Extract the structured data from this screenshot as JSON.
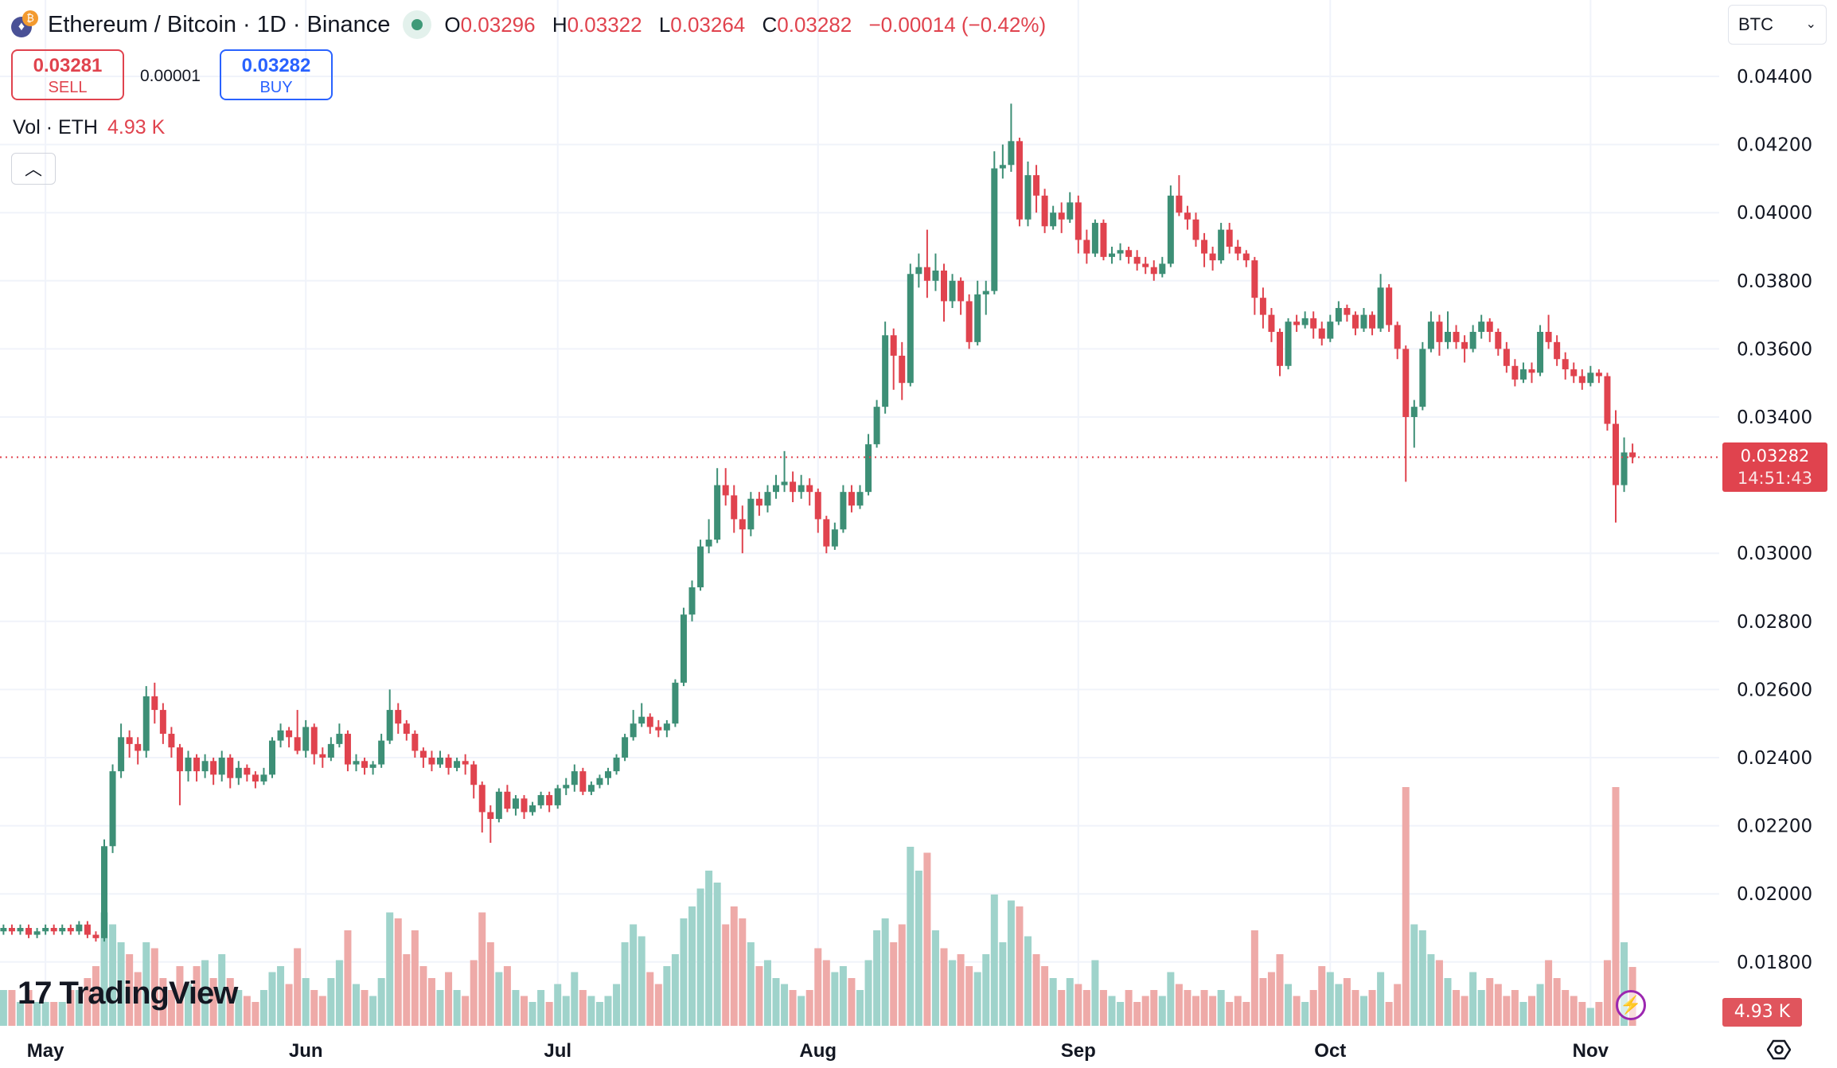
{
  "header": {
    "symbol_title": "Ethereum / Bitcoin · 1D · Binance",
    "ohlc": [
      {
        "key": "O",
        "value": "0.03296"
      },
      {
        "key": "H",
        "value": "0.03322"
      },
      {
        "key": "L",
        "value": "0.03264"
      },
      {
        "key": "C",
        "value": "0.03282"
      }
    ],
    "change": "−0.00014 (−0.42%)"
  },
  "trade": {
    "sell_price": "0.03281",
    "sell_label": "SELL",
    "spread": "0.00001",
    "buy_price": "0.03282",
    "buy_label": "BUY"
  },
  "volume_legend": {
    "label": "Vol · ETH",
    "value": "4.93 K"
  },
  "currency_selector": "BTC",
  "last_price_tag": {
    "price": "0.03282",
    "countdown": "14:51:43"
  },
  "volume_tag": "4.93 K",
  "logo_text": "TradingView",
  "colors": {
    "up": "#3d8f76",
    "down": "#e0434e",
    "up_volume": "#9fd3cb",
    "down_volume": "#eeaaa8",
    "grid": "#f0f3fa"
  },
  "chart_data": {
    "type": "candlestick",
    "title": "Ethereum / Bitcoin · 1D · Binance",
    "y_ticks": [
      "0.04400",
      "0.04200",
      "0.04000",
      "0.03800",
      "0.03600",
      "0.03400",
      "0.03000",
      "0.02800",
      "0.02600",
      "0.02400",
      "0.02200",
      "0.02000",
      "0.01800"
    ],
    "ylim": [
      0.0171,
      0.0444
    ],
    "x_ticks": [
      "May",
      "Jun",
      "Jul",
      "Aug",
      "Sep",
      "Oct",
      "Nov"
    ],
    "grid": true,
    "volume_unit": "K",
    "columns": [
      "open",
      "high",
      "low",
      "close",
      "volume_k"
    ],
    "candles": [
      [
        0.0189,
        0.0191,
        0.0188,
        0.019,
        3
      ],
      [
        0.019,
        0.0191,
        0.0188,
        0.0189,
        3
      ],
      [
        0.0189,
        0.0191,
        0.0188,
        0.019,
        2
      ],
      [
        0.019,
        0.0191,
        0.0187,
        0.0188,
        3
      ],
      [
        0.0188,
        0.019,
        0.0187,
        0.0189,
        2
      ],
      [
        0.0189,
        0.0191,
        0.0188,
        0.019,
        2
      ],
      [
        0.019,
        0.0191,
        0.0188,
        0.0189,
        2
      ],
      [
        0.0189,
        0.0191,
        0.0188,
        0.019,
        2
      ],
      [
        0.019,
        0.0191,
        0.0188,
        0.0189,
        3
      ],
      [
        0.0189,
        0.0192,
        0.0188,
        0.0191,
        3
      ],
      [
        0.0191,
        0.0192,
        0.0187,
        0.0188,
        4
      ],
      [
        0.0188,
        0.0189,
        0.0186,
        0.0187,
        5
      ],
      [
        0.0187,
        0.0216,
        0.0186,
        0.0214,
        9.5
      ],
      [
        0.0214,
        0.0238,
        0.0212,
        0.0236,
        8.5
      ],
      [
        0.0236,
        0.025,
        0.0234,
        0.0246,
        7
      ],
      [
        0.0246,
        0.0248,
        0.024,
        0.0244,
        6
      ],
      [
        0.0244,
        0.0246,
        0.0238,
        0.0242,
        4.5
      ],
      [
        0.0242,
        0.0261,
        0.024,
        0.0258,
        7
      ],
      [
        0.0258,
        0.0262,
        0.025,
        0.0254,
        6.5
      ],
      [
        0.0254,
        0.0256,
        0.0244,
        0.0247,
        4
      ],
      [
        0.0247,
        0.0249,
        0.024,
        0.0243,
        3
      ],
      [
        0.0243,
        0.0244,
        0.0226,
        0.0236,
        5
      ],
      [
        0.0236,
        0.0242,
        0.0233,
        0.024,
        3.5
      ],
      [
        0.024,
        0.0241,
        0.0233,
        0.0236,
        5
      ],
      [
        0.0236,
        0.0241,
        0.0234,
        0.0239,
        5.5
      ],
      [
        0.0239,
        0.024,
        0.0232,
        0.0235,
        4
      ],
      [
        0.0235,
        0.0242,
        0.0233,
        0.024,
        6
      ],
      [
        0.024,
        0.0241,
        0.0231,
        0.0234,
        4
      ],
      [
        0.0234,
        0.0239,
        0.0232,
        0.0237,
        3
      ],
      [
        0.0237,
        0.0238,
        0.0233,
        0.0235,
        2.5
      ],
      [
        0.0235,
        0.0236,
        0.0231,
        0.0233,
        2
      ],
      [
        0.0233,
        0.0237,
        0.0232,
        0.0235,
        3
      ],
      [
        0.0235,
        0.0246,
        0.0234,
        0.0245,
        4.5
      ],
      [
        0.0245,
        0.025,
        0.0243,
        0.0248,
        5
      ],
      [
        0.0248,
        0.0249,
        0.0243,
        0.0246,
        3.5
      ],
      [
        0.0246,
        0.0254,
        0.0241,
        0.0242,
        6.5
      ],
      [
        0.0242,
        0.0251,
        0.024,
        0.0249,
        4
      ],
      [
        0.0249,
        0.025,
        0.0238,
        0.0241,
        3
      ],
      [
        0.0241,
        0.0243,
        0.0237,
        0.024,
        2.5
      ],
      [
        0.024,
        0.0246,
        0.0239,
        0.0244,
        4
      ],
      [
        0.0244,
        0.025,
        0.0243,
        0.0247,
        5.5
      ],
      [
        0.0247,
        0.0248,
        0.0236,
        0.0238,
        8
      ],
      [
        0.0238,
        0.0241,
        0.0236,
        0.0239,
        3.5
      ],
      [
        0.0239,
        0.024,
        0.0235,
        0.0237,
        3
      ],
      [
        0.0237,
        0.0239,
        0.0235,
        0.0238,
        2.5
      ],
      [
        0.0238,
        0.0247,
        0.0237,
        0.0245,
        4
      ],
      [
        0.0245,
        0.026,
        0.0244,
        0.0254,
        9.5
      ],
      [
        0.0254,
        0.0256,
        0.0247,
        0.025,
        9
      ],
      [
        0.025,
        0.0251,
        0.0245,
        0.0247,
        6
      ],
      [
        0.0247,
        0.0248,
        0.024,
        0.0242,
        8
      ],
      [
        0.0242,
        0.0243,
        0.0237,
        0.024,
        5
      ],
      [
        0.024,
        0.0242,
        0.0236,
        0.0238,
        4
      ],
      [
        0.0238,
        0.0242,
        0.0237,
        0.024,
        3
      ],
      [
        0.024,
        0.0241,
        0.0235,
        0.0237,
        4.5
      ],
      [
        0.0237,
        0.024,
        0.0236,
        0.0239,
        3
      ],
      [
        0.0239,
        0.0241,
        0.0235,
        0.0238,
        2.5
      ],
      [
        0.0238,
        0.0239,
        0.0228,
        0.0232,
        5.5
      ],
      [
        0.0232,
        0.0233,
        0.0218,
        0.0224,
        9.5
      ],
      [
        0.0224,
        0.0226,
        0.0215,
        0.0222,
        7
      ],
      [
        0.0222,
        0.0231,
        0.0221,
        0.023,
        4.5
      ],
      [
        0.023,
        0.0232,
        0.0224,
        0.0225,
        5
      ],
      [
        0.0225,
        0.0229,
        0.0223,
        0.0228,
        3
      ],
      [
        0.0228,
        0.0229,
        0.0222,
        0.0224,
        2.5
      ],
      [
        0.0224,
        0.0227,
        0.0223,
        0.0226,
        2
      ],
      [
        0.0226,
        0.023,
        0.0225,
        0.0229,
        3
      ],
      [
        0.0229,
        0.023,
        0.0224,
        0.0226,
        2
      ],
      [
        0.0226,
        0.0232,
        0.0225,
        0.0231,
        3.5
      ],
      [
        0.0231,
        0.0234,
        0.0229,
        0.0232,
        2.5
      ],
      [
        0.0232,
        0.0238,
        0.023,
        0.0236,
        4.5
      ],
      [
        0.0236,
        0.0237,
        0.0229,
        0.023,
        3
      ],
      [
        0.023,
        0.0233,
        0.0229,
        0.0232,
        2.5
      ],
      [
        0.0232,
        0.0235,
        0.0231,
        0.0234,
        2
      ],
      [
        0.0234,
        0.0237,
        0.0232,
        0.0236,
        2.5
      ],
      [
        0.0236,
        0.0241,
        0.0235,
        0.024,
        3.5
      ],
      [
        0.024,
        0.0247,
        0.0239,
        0.0246,
        7
      ],
      [
        0.0246,
        0.0254,
        0.0245,
        0.025,
        8.5
      ],
      [
        0.025,
        0.0256,
        0.0249,
        0.0252,
        7.5
      ],
      [
        0.0252,
        0.0253,
        0.0247,
        0.0249,
        4.5
      ],
      [
        0.0249,
        0.0251,
        0.0246,
        0.0248,
        3.5
      ],
      [
        0.0248,
        0.0251,
        0.0246,
        0.025,
        5
      ],
      [
        0.025,
        0.0263,
        0.0249,
        0.0262,
        6
      ],
      [
        0.0262,
        0.0284,
        0.0261,
        0.0282,
        9
      ],
      [
        0.0282,
        0.0292,
        0.028,
        0.029,
        10
      ],
      [
        0.029,
        0.0304,
        0.0289,
        0.0302,
        11.5
      ],
      [
        0.0302,
        0.031,
        0.03,
        0.0304,
        13
      ],
      [
        0.0304,
        0.0325,
        0.0303,
        0.032,
        12
      ],
      [
        0.032,
        0.0325,
        0.0314,
        0.0317,
        8.5
      ],
      [
        0.0317,
        0.032,
        0.0306,
        0.031,
        10
      ],
      [
        0.031,
        0.0314,
        0.03,
        0.0307,
        9
      ],
      [
        0.0307,
        0.0318,
        0.0305,
        0.0316,
        7
      ],
      [
        0.0316,
        0.0318,
        0.0311,
        0.0314,
        5
      ],
      [
        0.0314,
        0.032,
        0.0312,
        0.0318,
        5.5
      ],
      [
        0.0318,
        0.0323,
        0.0316,
        0.032,
        4
      ],
      [
        0.032,
        0.033,
        0.0318,
        0.0321,
        3.5
      ],
      [
        0.0321,
        0.0324,
        0.0315,
        0.0318,
        3
      ],
      [
        0.0318,
        0.0323,
        0.0316,
        0.032,
        2.5
      ],
      [
        0.032,
        0.0322,
        0.0314,
        0.0318,
        3
      ],
      [
        0.0318,
        0.0319,
        0.0306,
        0.031,
        6.5
      ],
      [
        0.031,
        0.0311,
        0.03,
        0.0302,
        5.5
      ],
      [
        0.0302,
        0.0309,
        0.0301,
        0.0307,
        4.5
      ],
      [
        0.0307,
        0.032,
        0.0306,
        0.0318,
        5
      ],
      [
        0.0318,
        0.032,
        0.0312,
        0.0314,
        4
      ],
      [
        0.0314,
        0.032,
        0.0313,
        0.0318,
        3
      ],
      [
        0.0318,
        0.0335,
        0.0317,
        0.0332,
        5.5
      ],
      [
        0.0332,
        0.0345,
        0.0331,
        0.0343,
        8
      ],
      [
        0.0343,
        0.0368,
        0.0341,
        0.0364,
        9
      ],
      [
        0.0364,
        0.0366,
        0.0348,
        0.0358,
        7
      ],
      [
        0.0358,
        0.0362,
        0.0345,
        0.035,
        8.5
      ],
      [
        0.035,
        0.0385,
        0.0349,
        0.0382,
        15
      ],
      [
        0.0382,
        0.0388,
        0.0378,
        0.0384,
        13
      ],
      [
        0.0384,
        0.0395,
        0.0375,
        0.038,
        14.5
      ],
      [
        0.038,
        0.0388,
        0.0377,
        0.0383,
        8
      ],
      [
        0.0383,
        0.0385,
        0.0368,
        0.0374,
        6.5
      ],
      [
        0.0374,
        0.0382,
        0.0372,
        0.038,
        5.5
      ],
      [
        0.038,
        0.0381,
        0.037,
        0.0374,
        6
      ],
      [
        0.0374,
        0.0376,
        0.036,
        0.0362,
        5
      ],
      [
        0.0362,
        0.038,
        0.0361,
        0.0376,
        4.5
      ],
      [
        0.0376,
        0.038,
        0.037,
        0.0377,
        6
      ],
      [
        0.0377,
        0.0418,
        0.0376,
        0.0413,
        11
      ],
      [
        0.0413,
        0.042,
        0.041,
        0.0414,
        7
      ],
      [
        0.0414,
        0.0432,
        0.0412,
        0.0421,
        10.5
      ],
      [
        0.0421,
        0.0422,
        0.0396,
        0.0398,
        10
      ],
      [
        0.0398,
        0.0415,
        0.0396,
        0.0411,
        7.5
      ],
      [
        0.0411,
        0.0414,
        0.04,
        0.0405,
        6
      ],
      [
        0.0405,
        0.0407,
        0.0394,
        0.0396,
        5
      ],
      [
        0.0396,
        0.0402,
        0.0395,
        0.04,
        4
      ],
      [
        0.04,
        0.0403,
        0.0394,
        0.0398,
        3
      ],
      [
        0.0398,
        0.0406,
        0.0397,
        0.0403,
        4
      ],
      [
        0.0403,
        0.0405,
        0.0388,
        0.0392,
        3.5
      ],
      [
        0.0392,
        0.0395,
        0.0385,
        0.0388,
        3
      ],
      [
        0.0388,
        0.0398,
        0.0387,
        0.0397,
        5.5
      ],
      [
        0.0397,
        0.0398,
        0.0386,
        0.0387,
        3
      ],
      [
        0.0387,
        0.039,
        0.0385,
        0.0388,
        2.5
      ],
      [
        0.0388,
        0.0391,
        0.0386,
        0.0389,
        2
      ],
      [
        0.0389,
        0.039,
        0.0385,
        0.0387,
        3
      ],
      [
        0.0387,
        0.0389,
        0.0383,
        0.0385,
        2
      ],
      [
        0.0385,
        0.0387,
        0.0382,
        0.0384,
        2.5
      ],
      [
        0.0384,
        0.0386,
        0.038,
        0.0382,
        3
      ],
      [
        0.0382,
        0.0387,
        0.0381,
        0.0385,
        2.5
      ],
      [
        0.0385,
        0.0408,
        0.0384,
        0.0405,
        4.5
      ],
      [
        0.0405,
        0.0411,
        0.0399,
        0.04,
        3.5
      ],
      [
        0.04,
        0.0402,
        0.0395,
        0.0398,
        3
      ],
      [
        0.0398,
        0.04,
        0.039,
        0.0392,
        2.5
      ],
      [
        0.0392,
        0.0394,
        0.0384,
        0.0388,
        3
      ],
      [
        0.0388,
        0.039,
        0.0383,
        0.0386,
        2.5
      ],
      [
        0.0386,
        0.0397,
        0.0385,
        0.0395,
        3
      ],
      [
        0.0395,
        0.0397,
        0.0388,
        0.039,
        2
      ],
      [
        0.039,
        0.0392,
        0.0386,
        0.0388,
        2.5
      ],
      [
        0.0388,
        0.0389,
        0.0384,
        0.0386,
        2
      ],
      [
        0.0386,
        0.0387,
        0.037,
        0.0375,
        8
      ],
      [
        0.0375,
        0.0378,
        0.0366,
        0.037,
        4
      ],
      [
        0.037,
        0.0372,
        0.0362,
        0.0365,
        4.5
      ],
      [
        0.0365,
        0.0366,
        0.0352,
        0.0355,
        6
      ],
      [
        0.0355,
        0.0369,
        0.0354,
        0.0368,
        3.5
      ],
      [
        0.0368,
        0.037,
        0.0365,
        0.0367,
        2.5
      ],
      [
        0.0367,
        0.0371,
        0.0366,
        0.0369,
        2
      ],
      [
        0.0369,
        0.0371,
        0.0363,
        0.0366,
        3
      ],
      [
        0.0366,
        0.0368,
        0.0361,
        0.0363,
        5
      ],
      [
        0.0363,
        0.037,
        0.0362,
        0.0368,
        4.5
      ],
      [
        0.0368,
        0.0374,
        0.0367,
        0.0372,
        3.5
      ],
      [
        0.0372,
        0.0373,
        0.0368,
        0.037,
        4
      ],
      [
        0.037,
        0.0371,
        0.0364,
        0.0366,
        3
      ],
      [
        0.0366,
        0.0372,
        0.0365,
        0.037,
        2.5
      ],
      [
        0.037,
        0.0371,
        0.0364,
        0.0366,
        3
      ],
      [
        0.0366,
        0.0382,
        0.0365,
        0.0378,
        4.5
      ],
      [
        0.0378,
        0.0379,
        0.0365,
        0.0367,
        2
      ],
      [
        0.0367,
        0.0368,
        0.0357,
        0.036,
        3.5
      ],
      [
        0.036,
        0.0361,
        0.0321,
        0.034,
        20
      ],
      [
        0.034,
        0.0345,
        0.0331,
        0.0343,
        8.5
      ],
      [
        0.0343,
        0.0362,
        0.0342,
        0.036,
        8
      ],
      [
        0.036,
        0.0371,
        0.0359,
        0.0368,
        6
      ],
      [
        0.0368,
        0.037,
        0.0358,
        0.0362,
        5.5
      ],
      [
        0.0362,
        0.0371,
        0.036,
        0.0365,
        4
      ],
      [
        0.0365,
        0.0367,
        0.036,
        0.0362,
        3
      ],
      [
        0.0362,
        0.0364,
        0.0356,
        0.036,
        2.5
      ],
      [
        0.036,
        0.0367,
        0.0359,
        0.0365,
        4.5
      ],
      [
        0.0365,
        0.037,
        0.0363,
        0.0368,
        3
      ],
      [
        0.0368,
        0.0369,
        0.0362,
        0.0365,
        4
      ],
      [
        0.0365,
        0.0366,
        0.0358,
        0.036,
        3.5
      ],
      [
        0.036,
        0.0362,
        0.0353,
        0.0355,
        2.5
      ],
      [
        0.0355,
        0.0357,
        0.0349,
        0.0351,
        3
      ],
      [
        0.0351,
        0.0356,
        0.035,
        0.0354,
        2
      ],
      [
        0.0354,
        0.0356,
        0.035,
        0.0353,
        2.5
      ],
      [
        0.0353,
        0.0367,
        0.0352,
        0.0365,
        3.5
      ],
      [
        0.0365,
        0.037,
        0.036,
        0.0362,
        5.5
      ],
      [
        0.0362,
        0.0364,
        0.0355,
        0.0357,
        4
      ],
      [
        0.0357,
        0.0359,
        0.0351,
        0.0354,
        3
      ],
      [
        0.0354,
        0.0356,
        0.035,
        0.0352,
        2.5
      ],
      [
        0.0352,
        0.0354,
        0.0348,
        0.035,
        2
      ],
      [
        0.035,
        0.0355,
        0.0349,
        0.0353,
        1.5
      ],
      [
        0.0353,
        0.0354,
        0.035,
        0.0352,
        2
      ],
      [
        0.0352,
        0.0353,
        0.0336,
        0.0338,
        5.5
      ],
      [
        0.0338,
        0.0342,
        0.0309,
        0.032,
        20
      ],
      [
        0.032,
        0.0334,
        0.0318,
        0.03296,
        7
      ],
      [
        0.03296,
        0.03322,
        0.03264,
        0.03282,
        4.93
      ]
    ]
  }
}
